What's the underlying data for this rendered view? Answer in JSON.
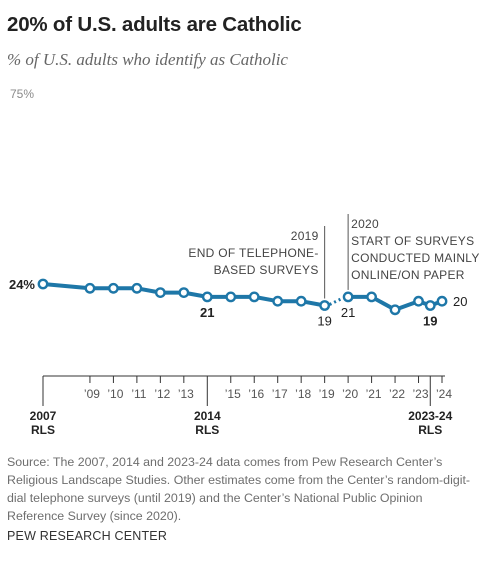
{
  "title": "20% of U.S. adults are Catholic",
  "subtitle": "% of U.S. adults who identify as Catholic",
  "source": "Source: The 2007, 2014 and 2023-24 data comes from Pew Research Center’s Religious Landscape Studies. Other estimates come from the Center’s random-digit-dial telephone surveys (until 2019) and the Center’s National Public Opinion Reference Survey (since 2020).",
  "credit": "PEW RESEARCH CENTER",
  "colors": {
    "line": "#1e77a8",
    "axis": "#333333",
    "label": "#222222",
    "muted": "#6e6e6e",
    "top_label": "#8a8a8a"
  },
  "chart_data": {
    "type": "line",
    "title": "20% of U.S. adults are Catholic",
    "subtitle": "% of U.S. adults who identify as Catholic",
    "y_top_label": "75%",
    "ylim": [
      0,
      75
    ],
    "grid": false,
    "series": [
      {
        "segment": "telephone",
        "points": [
          {
            "x": 2007.0,
            "y": 24
          },
          {
            "x": 2009.0,
            "y": 23
          },
          {
            "x": 2010.0,
            "y": 23
          },
          {
            "x": 2011.0,
            "y": 23
          },
          {
            "x": 2012.0,
            "y": 22
          },
          {
            "x": 2013.0,
            "y": 22
          },
          {
            "x": 2014.0,
            "y": 21
          },
          {
            "x": 2015.0,
            "y": 21
          },
          {
            "x": 2016.0,
            "y": 21
          },
          {
            "x": 2017.0,
            "y": 20
          },
          {
            "x": 2018.0,
            "y": 20
          },
          {
            "x": 2019.0,
            "y": 19
          }
        ]
      },
      {
        "segment": "online",
        "points": [
          {
            "x": 2020.0,
            "y": 21
          },
          {
            "x": 2021.0,
            "y": 21
          },
          {
            "x": 2022.0,
            "y": 18
          },
          {
            "x": 2023.0,
            "y": 20
          },
          {
            "x": 2023.5,
            "y": 19
          },
          {
            "x": 2024.0,
            "y": 20
          }
        ]
      }
    ],
    "data_labels": [
      {
        "x": 2007.0,
        "y": 24,
        "text": "24%",
        "bold": true
      },
      {
        "x": 2014.0,
        "y": 21,
        "text": "21",
        "bold": true
      },
      {
        "x": 2019.0,
        "y": 19,
        "text": "19",
        "bold": false
      },
      {
        "x": 2020.0,
        "y": 21,
        "text": "21",
        "bold": false
      },
      {
        "x": 2023.5,
        "y": 19,
        "text": "19",
        "bold": true
      },
      {
        "x": 2024.0,
        "y": 20,
        "text": "20",
        "bold": false
      }
    ],
    "annotations": [
      {
        "x": 2019.0,
        "lines": [
          "2019",
          "END OF TELEPHONE-",
          "BASED SURVEYS"
        ]
      },
      {
        "x": 2020.0,
        "lines": [
          "2020",
          "START OF SURVEYS",
          "CONDUCTED MAINLY",
          "ONLINE/ON PAPER"
        ]
      }
    ],
    "x_ticks": [
      {
        "x": 2007.0,
        "label": "",
        "major": true
      },
      {
        "x": 2009.0,
        "label": "’09"
      },
      {
        "x": 2010.0,
        "label": "’10"
      },
      {
        "x": 2011.0,
        "label": "’11"
      },
      {
        "x": 2012.0,
        "label": "’12"
      },
      {
        "x": 2013.0,
        "label": "’13"
      },
      {
        "x": 2014.0,
        "label": "",
        "major": true
      },
      {
        "x": 2015.0,
        "label": "’15"
      },
      {
        "x": 2016.0,
        "label": "’16"
      },
      {
        "x": 2017.0,
        "label": "’17"
      },
      {
        "x": 2018.0,
        "label": "’18"
      },
      {
        "x": 2019.0,
        "label": "’19"
      },
      {
        "x": 2020.0,
        "label": "’20"
      },
      {
        "x": 2021.0,
        "label": "’21"
      },
      {
        "x": 2022.0,
        "label": "’22"
      },
      {
        "x": 2023.0,
        "label": "’23"
      },
      {
        "x": 2023.5,
        "label": "",
        "major": true
      },
      {
        "x": 2024.0,
        "label": "’24"
      }
    ],
    "major_labels": [
      {
        "x": 2007.0,
        "lines": [
          "2007",
          "RLS"
        ]
      },
      {
        "x": 2014.0,
        "lines": [
          "2014",
          "RLS"
        ]
      },
      {
        "x": 2023.5,
        "lines": [
          "2023-24",
          "RLS"
        ]
      }
    ]
  }
}
